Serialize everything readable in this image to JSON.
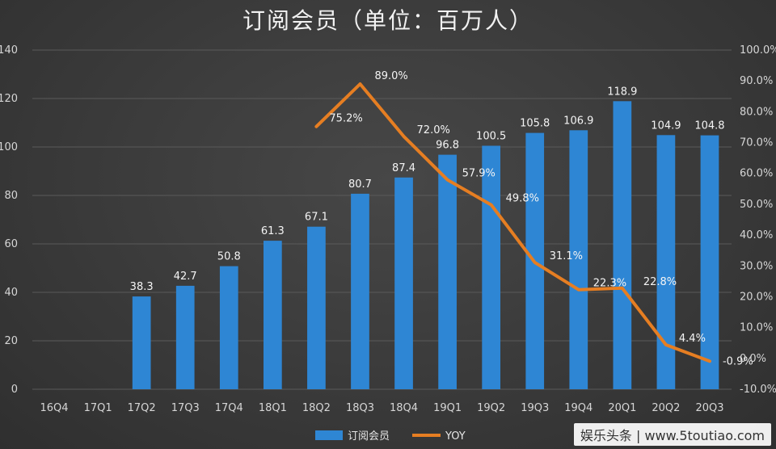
{
  "chart_data": {
    "type": "bar",
    "title": "订阅会员（单位：百万人）",
    "categories": [
      "16Q4",
      "17Q1",
      "17Q2",
      "17Q3",
      "17Q4",
      "18Q1",
      "18Q2",
      "18Q3",
      "18Q4",
      "19Q1",
      "19Q2",
      "19Q3",
      "19Q4",
      "20Q1",
      "20Q2",
      "20Q3"
    ],
    "series": [
      {
        "name": "订阅会员",
        "type": "bar",
        "axis": "left",
        "color": "#2e86d4",
        "values": [
          null,
          null,
          38.3,
          42.7,
          50.8,
          61.3,
          67.1,
          80.7,
          87.4,
          96.8,
          100.5,
          105.8,
          106.9,
          118.9,
          104.9,
          104.8
        ],
        "labels": [
          "",
          "",
          "38.3",
          "42.7",
          "50.8",
          "61.3",
          "67.1",
          "80.7",
          "87.4",
          "96.8",
          "100.5",
          "105.8",
          "106.9",
          "118.9",
          "104.9",
          "104.8"
        ]
      },
      {
        "name": "YOY",
        "type": "line",
        "axis": "right",
        "color": "#e67e22",
        "values": [
          null,
          null,
          null,
          null,
          null,
          null,
          75.2,
          89.0,
          72.0,
          57.9,
          49.8,
          31.1,
          22.3,
          22.8,
          4.4,
          -0.9
        ],
        "labels": [
          "",
          "",
          "",
          "",
          "",
          "",
          "75.2%",
          "89.0%",
          "72.0%",
          "57.9%",
          "49.8%",
          "31.1%",
          "22.3%",
          "22.8%",
          "4.4%",
          "-0.9%"
        ]
      }
    ],
    "y_left": {
      "min": 0,
      "max": 140,
      "ticks": [
        "0",
        "20",
        "40",
        "60",
        "80",
        "100",
        "120",
        "140"
      ]
    },
    "y_right": {
      "min": -10,
      "max": 100,
      "ticks": [
        "-10.0%",
        "0.0%",
        "10.0%",
        "20.0%",
        "30.0%",
        "40.0%",
        "50.0%",
        "60.0%",
        "70.0%",
        "80.0%",
        "90.0%",
        "100.0%"
      ]
    },
    "grid": true,
    "legend": "bottom"
  },
  "watermark": "娱乐头条 | www.5toutiao.com"
}
